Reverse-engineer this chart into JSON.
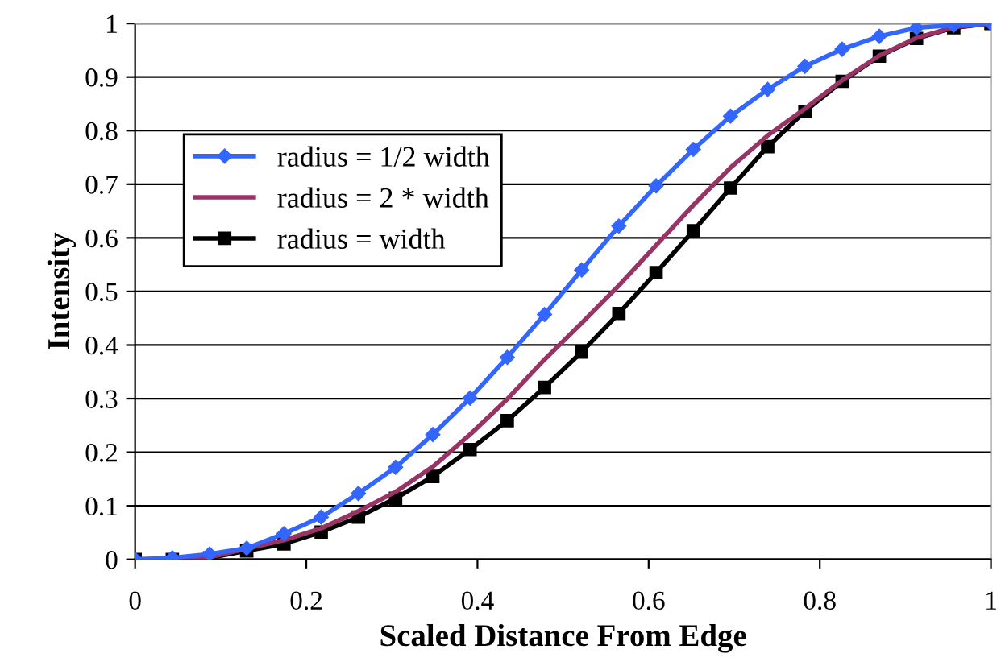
{
  "chart_data": {
    "type": "line",
    "xlabel": "Scaled Distance From Edge",
    "ylabel": "Intensity",
    "x": [
      0,
      0.0435,
      0.087,
      0.1304,
      0.1739,
      0.2174,
      0.2609,
      0.3043,
      0.3478,
      0.3913,
      0.4348,
      0.4783,
      0.5217,
      0.5652,
      0.6087,
      0.6522,
      0.6957,
      0.7391,
      0.7826,
      0.8261,
      0.8696,
      0.913,
      0.9565,
      1
    ],
    "series": [
      {
        "name": "radius = 1/2 width",
        "color": "#3366ff",
        "marker": "diamond",
        "values": [
          0,
          0.003,
          0.01,
          0.021,
          0.048,
          0.079,
          0.123,
          0.172,
          0.233,
          0.301,
          0.377,
          0.457,
          0.54,
          0.622,
          0.697,
          0.765,
          0.827,
          0.877,
          0.92,
          0.952,
          0.976,
          0.992,
          0.997,
          1
        ]
      },
      {
        "name": "radius = 2 * width",
        "color": "#993366",
        "marker": "none",
        "values": [
          0,
          0.001,
          0.004,
          0.02,
          0.036,
          0.058,
          0.09,
          0.126,
          0.173,
          0.233,
          0.299,
          0.373,
          0.441,
          0.511,
          0.586,
          0.661,
          0.731,
          0.791,
          0.841,
          0.894,
          0.94,
          0.973,
          0.993,
          1
        ]
      },
      {
        "name": "radius = width",
        "color": "#000000",
        "marker": "square",
        "values": [
          0,
          0,
          0.003,
          0.016,
          0.029,
          0.051,
          0.079,
          0.114,
          0.155,
          0.205,
          0.259,
          0.321,
          0.387,
          0.459,
          0.535,
          0.613,
          0.693,
          0.77,
          0.836,
          0.892,
          0.939,
          0.972,
          0.992,
          1
        ]
      }
    ],
    "xlim": [
      0,
      1
    ],
    "xticks": [
      0,
      0.2,
      0.4,
      0.6,
      0.8,
      1
    ],
    "ylim": [
      0,
      1
    ],
    "yticks": [
      0,
      0.1,
      0.2,
      0.3,
      0.4,
      0.5,
      0.6,
      0.7,
      0.8,
      0.9,
      1
    ],
    "grid": "y",
    "legend": "left",
    "line_style": "solid"
  }
}
